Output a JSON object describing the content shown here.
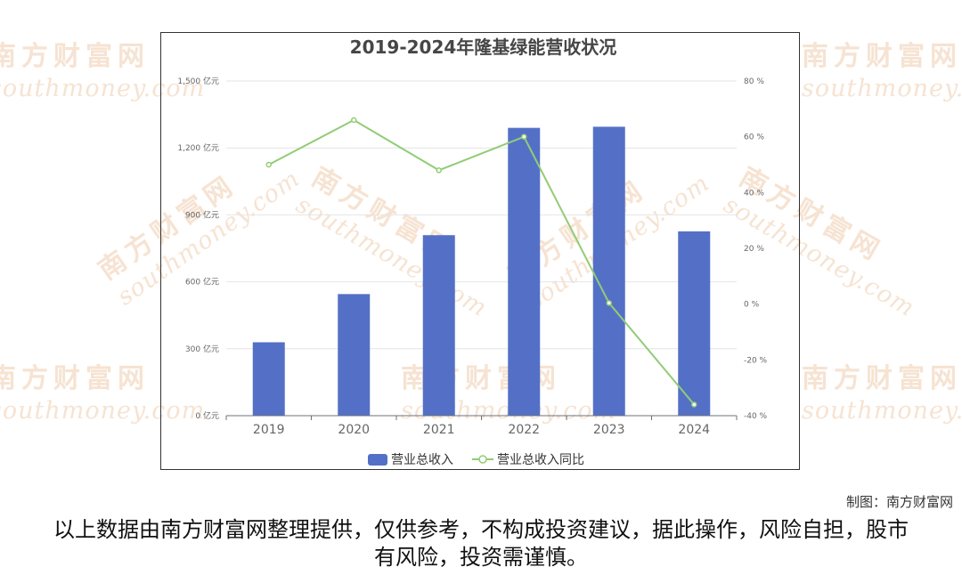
{
  "watermark": {
    "cn": "南方财富网",
    "en": "southmoney.com"
  },
  "chart_data": {
    "type": "bar+line",
    "title": "2019-2024年隆基绿能营收状况",
    "categories": [
      "2019",
      "2020",
      "2021",
      "2022",
      "2023",
      "2024"
    ],
    "series": [
      {
        "name": "营业总收入",
        "type": "bar",
        "axis": "left",
        "values": [
          329,
          545,
          809,
          1290,
          1295,
          826
        ],
        "color": "#5470c6"
      },
      {
        "name": "营业总收入同比",
        "type": "line",
        "axis": "right",
        "values": [
          50,
          66,
          48,
          60,
          0.4,
          -36
        ],
        "color": "#91cc75"
      }
    ],
    "y_left": {
      "ticks": [
        0,
        300,
        600,
        900,
        1200,
        1500
      ],
      "tick_labels": [
        "0 亿元",
        "300 亿元",
        "600 亿元",
        "900 亿元",
        "1,200 亿元",
        "1,500 亿元"
      ],
      "ylim": [
        0,
        1500
      ]
    },
    "y_right": {
      "ticks": [
        -40,
        -20,
        0,
        20,
        40,
        60,
        80
      ],
      "tick_labels": [
        "-40 %",
        "-20 %",
        "0 %",
        "20 %",
        "40 %",
        "60 %",
        "80 %"
      ],
      "ylim": [
        -40,
        80
      ]
    },
    "grid": true,
    "legend": "bottom-center"
  },
  "footer": {
    "credit": "制图：南方财富网",
    "disclaimer": "以上数据由南方财富网整理提供，仅供参考，不构成投资建议，据此操作，风险自担，股市有风险，投资需谨慎。"
  }
}
